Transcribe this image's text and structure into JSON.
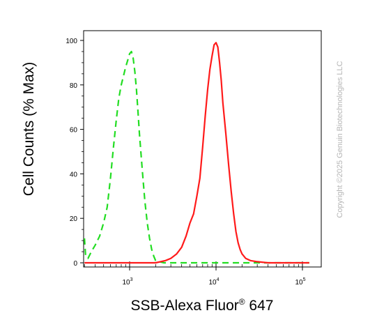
{
  "chart_data": {
    "type": "line",
    "title": "",
    "xlabel": {
      "main": "SSB-Alexa Fluor",
      "reg": "®",
      "suffix": " 647"
    },
    "ylabel": "Cell Counts (% Max)",
    "xscale": "log",
    "xlim": [
      300,
      120000
    ],
    "ylim": [
      0,
      100
    ],
    "yticks": [
      0,
      20,
      40,
      60,
      80,
      100
    ],
    "ytick_labels": [
      "0",
      "20",
      "40",
      "60",
      "80",
      "100"
    ],
    "xticks": [
      {
        "value": 1000,
        "base": "10",
        "exp": "3"
      },
      {
        "value": 10000,
        "base": "10",
        "exp": "4"
      },
      {
        "value": 100000,
        "base": "10",
        "exp": "5"
      }
    ],
    "grid": false,
    "legend": "none",
    "series": [
      {
        "style": "dashed",
        "color": "#22dd22",
        "x": [
          300,
          310,
          330,
          360,
          400,
          450,
          500,
          550,
          600,
          650,
          700,
          750,
          800,
          850,
          900,
          950,
          1000,
          1050,
          1100,
          1150,
          1200,
          1250,
          1300,
          1400,
          1500,
          1600,
          1700,
          1800,
          1900,
          2000,
          2200,
          2500,
          3000,
          4000,
          6000,
          10000,
          20000,
          50000,
          120000
        ],
        "y": [
          11,
          3,
          2,
          5,
          8,
          12,
          18,
          25,
          38,
          52,
          64,
          74,
          80,
          84,
          88,
          91,
          94,
          95,
          92,
          86,
          78,
          68,
          58,
          42,
          28,
          18,
          11,
          6,
          3,
          1,
          0.5,
          0,
          0,
          0,
          0,
          0,
          0,
          0,
          0
        ]
      },
      {
        "style": "solid",
        "color": "#ff1a1a",
        "x": [
          300,
          1000,
          2000,
          2600,
          3000,
          3500,
          4000,
          4500,
          5000,
          5500,
          6000,
          6500,
          7000,
          7500,
          8000,
          8500,
          9000,
          9500,
          10000,
          10500,
          11000,
          11500,
          12000,
          13000,
          14000,
          15000,
          16000,
          17000,
          18000,
          19000,
          20000,
          22000,
          25000,
          30000,
          40000,
          60000,
          120000
        ],
        "y": [
          0,
          0,
          0,
          1,
          2,
          4,
          7,
          12,
          18,
          22,
          30,
          38,
          52,
          66,
          78,
          87,
          93,
          98,
          99,
          97,
          90,
          82,
          72,
          58,
          44,
          32,
          22,
          14,
          9,
          6,
          4,
          2,
          1,
          0.5,
          0,
          0,
          0
        ]
      }
    ]
  },
  "copyright": "Copyright ©2025 Genuin Biotechnologies LLC",
  "colors": {
    "axis": "#000000",
    "isotype": "#22dd22",
    "sample": "#ff1a1a",
    "watermark": "#b5b5b5"
  }
}
